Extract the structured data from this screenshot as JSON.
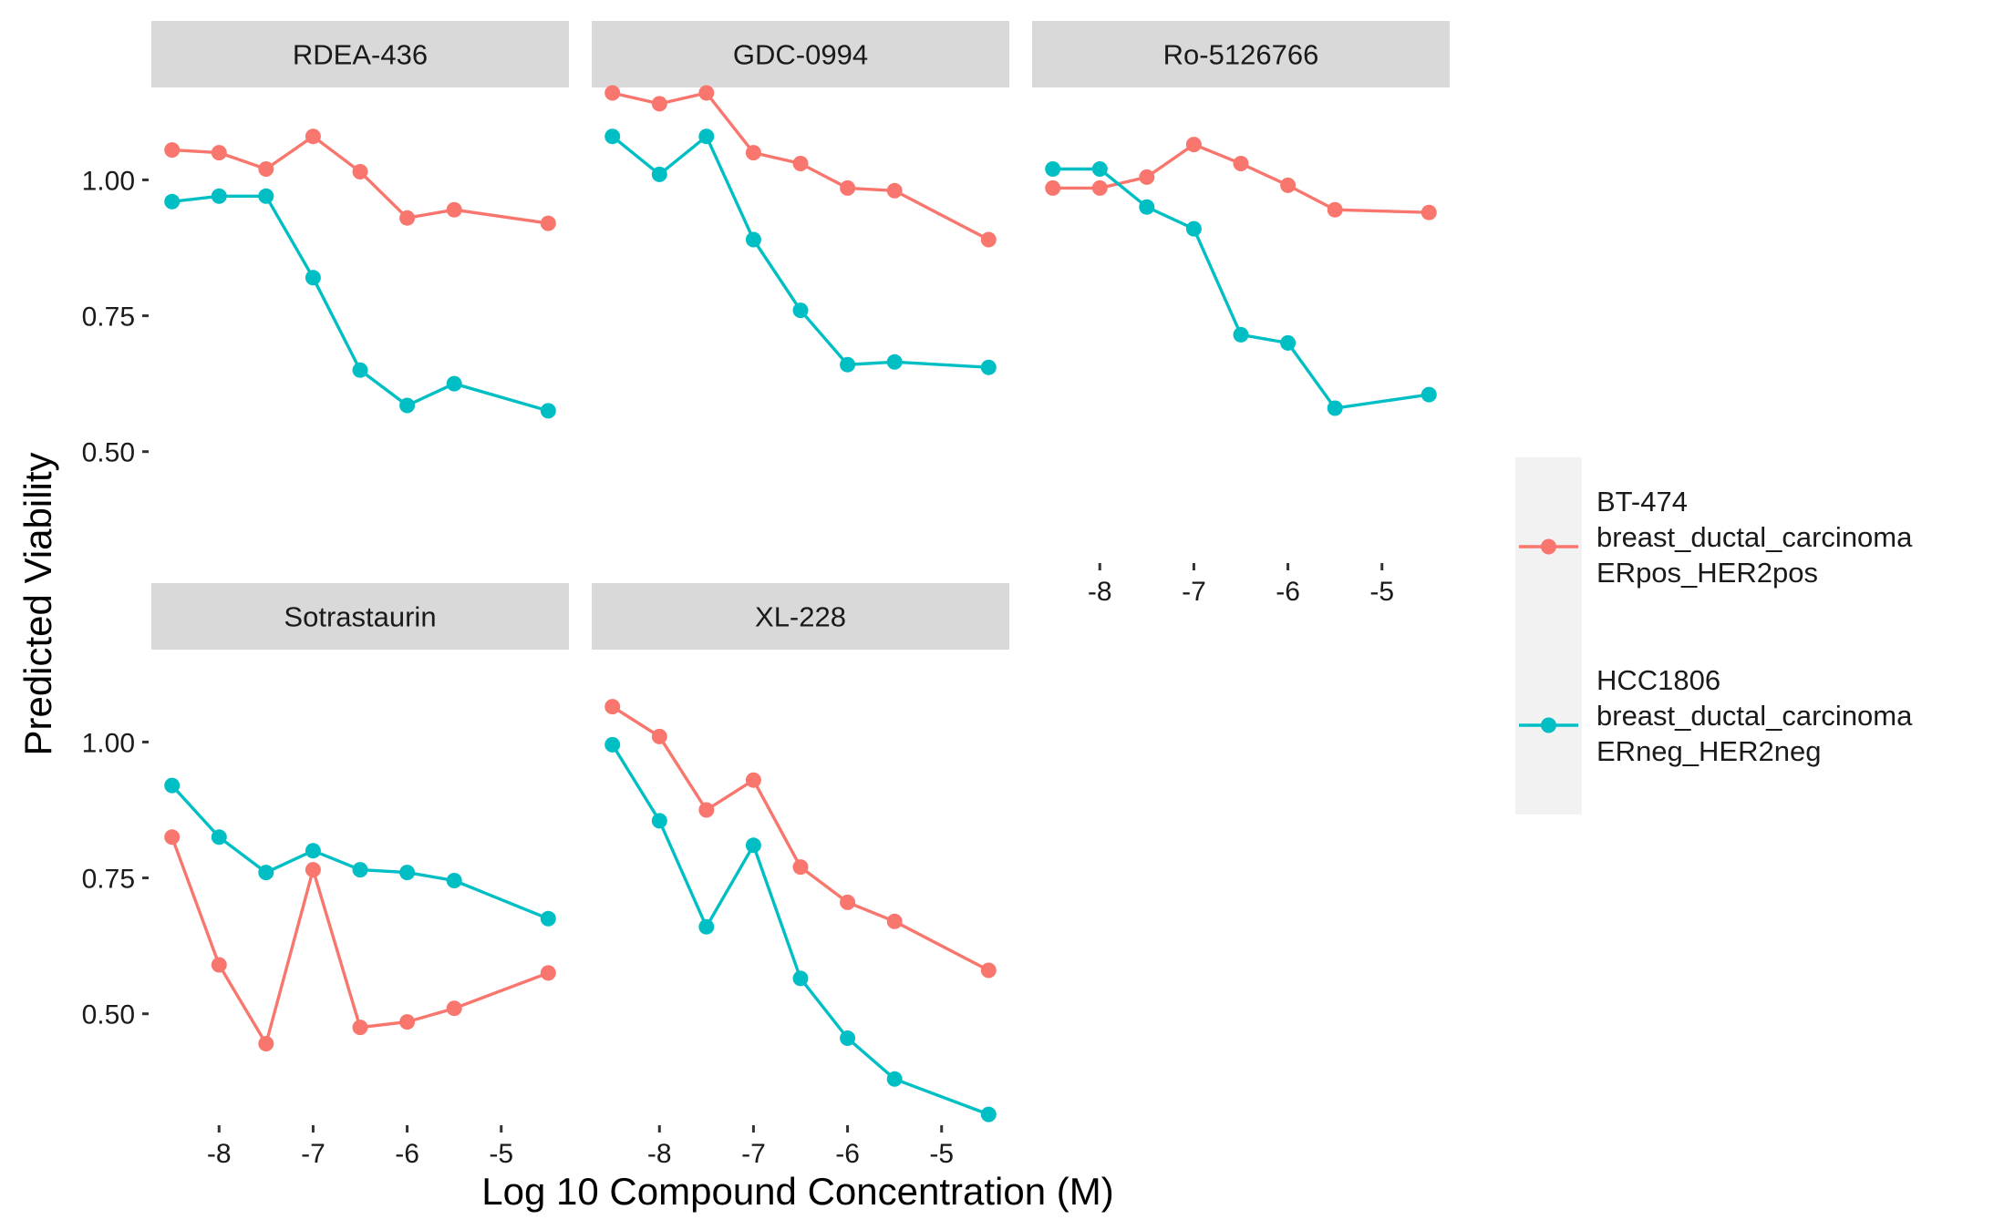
{
  "chart_data": {
    "type": "line",
    "xlabel": "Log 10 Compound Concentration (M)",
    "ylabel": "Predicted Viability",
    "x": [
      -8.5,
      -8,
      -7.5,
      -7,
      -6.5,
      -6,
      -5.5,
      -4.5
    ],
    "x_ticks": [
      -8,
      -7,
      -6,
      -5
    ],
    "y_ticks": [
      0.5,
      0.75,
      1.0
    ],
    "y_tick_labels": [
      "0.50",
      "0.75",
      "1.00"
    ],
    "ylim": [
      0.3,
      1.17
    ],
    "xlim": [
      -8.72,
      -4.28
    ],
    "grid": false,
    "legend_position": "right",
    "series_styles": [
      {
        "key": "bt474",
        "name": "BT-474\nbreast_ductal_carcinoma\nERpos_HER2pos",
        "color": "#F8766D"
      },
      {
        "key": "hcc1806",
        "name": "HCC1806\nbreast_ductal_carcinoma\nERneg_HER2neg",
        "color": "#00BFC4"
      }
    ],
    "panels": [
      {
        "title": "RDEA-436",
        "series": [
          {
            "key": "bt474",
            "values": [
              1.055,
              1.05,
              1.02,
              1.08,
              1.015,
              0.93,
              0.945,
              0.92
            ]
          },
          {
            "key": "hcc1806",
            "values": [
              0.96,
              0.97,
              0.97,
              0.82,
              0.65,
              0.585,
              0.625,
              0.575
            ]
          }
        ]
      },
      {
        "title": "GDC-0994",
        "series": [
          {
            "key": "bt474",
            "values": [
              1.16,
              1.14,
              1.16,
              1.05,
              1.03,
              0.985,
              0.98,
              0.89
            ]
          },
          {
            "key": "hcc1806",
            "values": [
              1.08,
              1.01,
              1.08,
              0.89,
              0.76,
              0.66,
              0.665,
              0.655
            ]
          }
        ]
      },
      {
        "title": "Ro-5126766",
        "series": [
          {
            "key": "bt474",
            "values": [
              0.985,
              0.985,
              1.005,
              1.065,
              1.03,
              0.99,
              0.945,
              0.94
            ]
          },
          {
            "key": "hcc1806",
            "values": [
              1.02,
              1.02,
              0.95,
              0.91,
              0.715,
              0.7,
              0.58,
              0.605
            ]
          }
        ]
      },
      {
        "title": "Sotrastaurin",
        "series": [
          {
            "key": "bt474",
            "values": [
              0.825,
              0.59,
              0.445,
              0.765,
              0.475,
              0.485,
              0.51,
              0.575
            ]
          },
          {
            "key": "hcc1806",
            "values": [
              0.92,
              0.825,
              0.76,
              0.8,
              0.765,
              0.76,
              0.745,
              0.675
            ]
          }
        ]
      },
      {
        "title": "XL-228",
        "series": [
          {
            "key": "bt474",
            "values": [
              1.065,
              1.01,
              0.875,
              0.93,
              0.77,
              0.705,
              0.67,
              0.58
            ]
          },
          {
            "key": "hcc1806",
            "values": [
              0.995,
              0.855,
              0.66,
              0.81,
              0.565,
              0.455,
              0.38,
              0.315
            ]
          }
        ]
      }
    ]
  }
}
